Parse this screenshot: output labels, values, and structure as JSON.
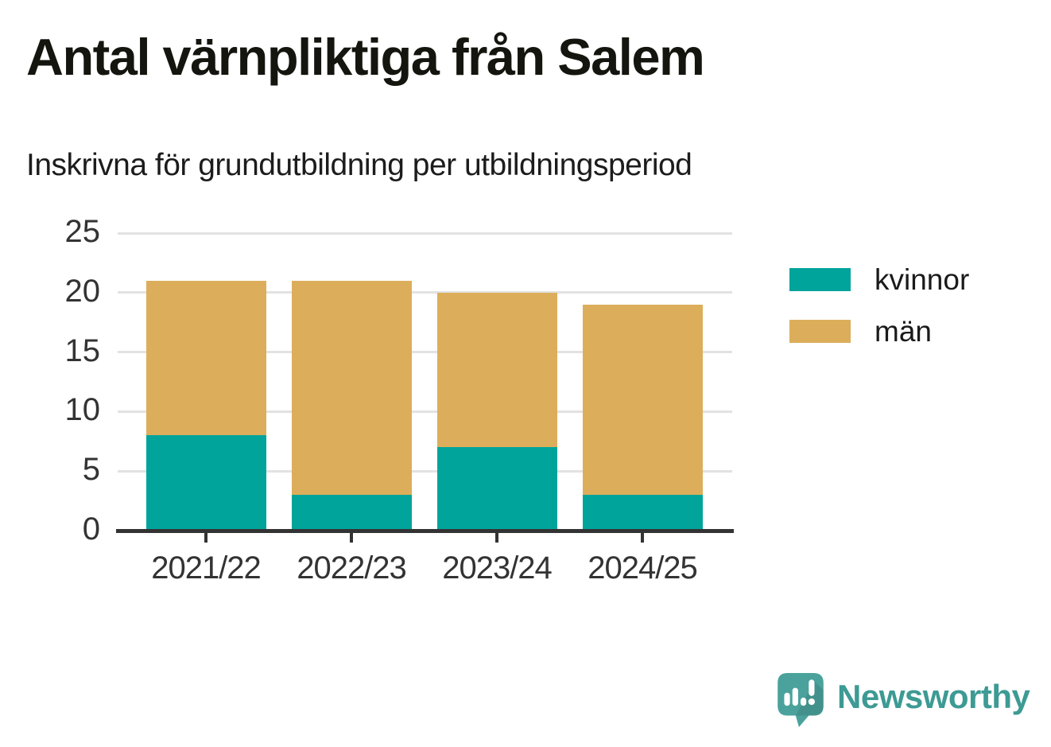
{
  "title": "Antal värnpliktiga från Salem",
  "subtitle": "Inskrivna för grundutbildning per utbildningsperiod",
  "branding": {
    "name": "Newsworthy",
    "icon": "newsworthy-speech-bubble-bar-chart-icon",
    "text_color": "#3d9a94",
    "icon_color": "#4ba29c"
  },
  "colors": {
    "kvinnor": "#00a49b",
    "man": "#dcae5b",
    "axis": "#333333",
    "gridline": "#e2e2e2",
    "title_text": "#15150f"
  },
  "chart_data": {
    "type": "bar",
    "stacked": true,
    "title": "Antal värnpliktiga från Salem",
    "subtitle": "Inskrivna för grundutbildning per utbildningsperiod",
    "categories": [
      "2021/22",
      "2022/23",
      "2023/24",
      "2024/25"
    ],
    "series": [
      {
        "name": "kvinnor",
        "color": "#00a49b",
        "values": [
          8,
          3,
          7,
          3
        ]
      },
      {
        "name": "män",
        "color": "#dcae5b",
        "values": [
          13,
          18,
          13,
          16
        ]
      }
    ],
    "totals": [
      21,
      21,
      20,
      19
    ],
    "xlabel": "",
    "ylabel": "",
    "ylim": [
      0,
      25
    ],
    "y_ticks": [
      0,
      5,
      10,
      15,
      20,
      25
    ],
    "grid": "horizontal",
    "legend_position": "right"
  }
}
